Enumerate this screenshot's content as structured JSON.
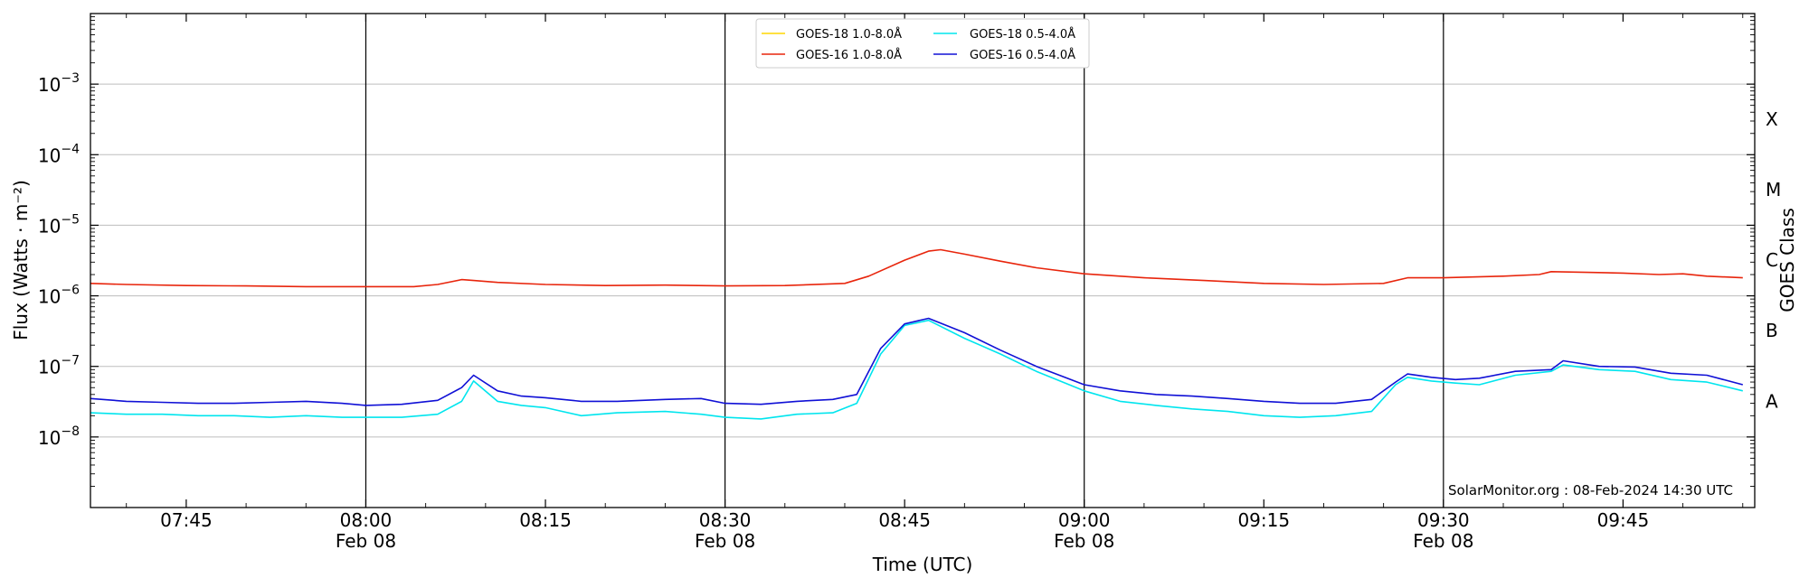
{
  "chart_data": {
    "type": "line",
    "title": "",
    "xlabel": "Time (UTC)",
    "ylabel": "Flux (Watts · m⁻²)",
    "right_label": "GOES Class",
    "y_scale": "log",
    "ylim": [
      1e-09,
      0.01
    ],
    "xlim": [
      "07:37",
      "09:56"
    ],
    "grid": "horizontal",
    "legend_position": "top-center",
    "watermark": "SolarMonitor.org : 08-Feb-2024 14:30 UTC",
    "x_ticks": [
      {
        "time": "07:45",
        "label": "07:45",
        "sub": ""
      },
      {
        "time": "08:00",
        "label": "08:00",
        "sub": "Feb 08"
      },
      {
        "time": "08:15",
        "label": "08:15",
        "sub": ""
      },
      {
        "time": "08:30",
        "label": "08:30",
        "sub": "Feb 08"
      },
      {
        "time": "08:45",
        "label": "08:45",
        "sub": ""
      },
      {
        "time": "09:00",
        "label": "09:00",
        "sub": "Feb 08"
      },
      {
        "time": "09:15",
        "label": "09:15",
        "sub": ""
      },
      {
        "time": "09:30",
        "label": "09:30",
        "sub": "Feb 08"
      },
      {
        "time": "09:45",
        "label": "09:45",
        "sub": ""
      }
    ],
    "day_lines": [
      "08:00",
      "08:30",
      "09:00",
      "09:30"
    ],
    "y_ticks": [
      {
        "value": 1e-08,
        "base": "10",
        "exp": "−8"
      },
      {
        "value": 1e-07,
        "base": "10",
        "exp": "−7"
      },
      {
        "value": 1e-06,
        "base": "10",
        "exp": "−6"
      },
      {
        "value": 1e-05,
        "base": "10",
        "exp": "−5"
      },
      {
        "value": 0.0001,
        "base": "10",
        "exp": "−4"
      },
      {
        "value": 0.001,
        "base": "10",
        "exp": "−3"
      }
    ],
    "goes_classes": [
      {
        "label": "A",
        "value": 3.2e-08
      },
      {
        "label": "B",
        "value": 3.2e-07
      },
      {
        "label": "C",
        "value": 3.2e-06
      },
      {
        "label": "M",
        "value": 3.2e-05
      },
      {
        "label": "X",
        "value": 0.00032
      }
    ],
    "series": [
      {
        "name": "GOES-18 1.0-8.0Å",
        "color": "#ffd700",
        "x": [],
        "values": []
      },
      {
        "name": "GOES-18 0.5-4.0Å",
        "color": "#00e5ee",
        "x": [
          "07:37",
          "07:40",
          "07:43",
          "07:46",
          "07:49",
          "07:52",
          "07:55",
          "07:58",
          "08:00",
          "08:03",
          "08:06",
          "08:08",
          "08:09",
          "08:11",
          "08:13",
          "08:15",
          "08:18",
          "08:21",
          "08:25",
          "08:28",
          "08:30",
          "08:33",
          "08:36",
          "08:39",
          "08:41",
          "08:43",
          "08:45",
          "08:47",
          "08:50",
          "08:53",
          "08:56",
          "09:00",
          "09:03",
          "09:06",
          "09:09",
          "09:12",
          "09:15",
          "09:18",
          "09:21",
          "09:24",
          "09:26",
          "09:27",
          "09:29",
          "09:31",
          "09:33",
          "09:36",
          "09:39",
          "09:40",
          "09:43",
          "09:46",
          "09:49",
          "09:52",
          "09:55"
        ],
        "values": [
          2.2e-08,
          2.1e-08,
          2.1e-08,
          2e-08,
          2e-08,
          1.9e-08,
          2e-08,
          1.9e-08,
          1.9e-08,
          1.9e-08,
          2.1e-08,
          3.2e-08,
          6.2e-08,
          3.2e-08,
          2.8e-08,
          2.6e-08,
          2e-08,
          2.2e-08,
          2.3e-08,
          2.1e-08,
          1.9e-08,
          1.8e-08,
          2.1e-08,
          2.2e-08,
          3e-08,
          1.5e-07,
          3.8e-07,
          4.5e-07,
          2.5e-07,
          1.5e-07,
          8.5e-08,
          4.5e-08,
          3.2e-08,
          2.8e-08,
          2.5e-08,
          2.3e-08,
          2e-08,
          1.9e-08,
          2e-08,
          2.3e-08,
          5.5e-08,
          7e-08,
          6.2e-08,
          5.8e-08,
          5.5e-08,
          7.5e-08,
          8.5e-08,
          1.05e-07,
          9e-08,
          8.5e-08,
          6.5e-08,
          6e-08,
          4.5e-08
        ]
      },
      {
        "name": "GOES-16 1.0-8.0Å",
        "color": "#e8250c",
        "x": [
          "07:37",
          "07:40",
          "07:45",
          "07:50",
          "07:55",
          "08:00",
          "08:04",
          "08:06",
          "08:08",
          "08:09",
          "08:11",
          "08:15",
          "08:20",
          "08:25",
          "08:30",
          "08:35",
          "08:40",
          "08:42",
          "08:45",
          "08:47",
          "08:48",
          "08:50",
          "08:53",
          "08:56",
          "09:00",
          "09:05",
          "09:10",
          "09:15",
          "09:20",
          "09:25",
          "09:27",
          "09:30",
          "09:35",
          "09:38",
          "09:39",
          "09:42",
          "09:45",
          "09:48",
          "09:50",
          "09:52",
          "09:55"
        ],
        "values": [
          1.5e-06,
          1.45e-06,
          1.4e-06,
          1.38e-06,
          1.35e-06,
          1.35e-06,
          1.35e-06,
          1.45e-06,
          1.7e-06,
          1.65e-06,
          1.55e-06,
          1.45e-06,
          1.4e-06,
          1.42e-06,
          1.38e-06,
          1.4e-06,
          1.5e-06,
          1.9e-06,
          3.2e-06,
          4.3e-06,
          4.5e-06,
          3.9e-06,
          3.1e-06,
          2.5e-06,
          2.05e-06,
          1.8e-06,
          1.65e-06,
          1.5e-06,
          1.45e-06,
          1.5e-06,
          1.8e-06,
          1.8e-06,
          1.9e-06,
          2e-06,
          2.2e-06,
          2.15e-06,
          2.1e-06,
          2e-06,
          2.05e-06,
          1.9e-06,
          1.8e-06
        ]
      },
      {
        "name": "GOES-16 0.5-4.0Å",
        "color": "#1010d6",
        "x": [
          "07:37",
          "07:40",
          "07:43",
          "07:46",
          "07:49",
          "07:52",
          "07:55",
          "07:58",
          "08:00",
          "08:03",
          "08:06",
          "08:08",
          "08:09",
          "08:11",
          "08:13",
          "08:15",
          "08:18",
          "08:21",
          "08:25",
          "08:28",
          "08:30",
          "08:33",
          "08:36",
          "08:39",
          "08:41",
          "08:43",
          "08:45",
          "08:47",
          "08:50",
          "08:53",
          "08:56",
          "09:00",
          "09:03",
          "09:06",
          "09:09",
          "09:12",
          "09:15",
          "09:18",
          "09:21",
          "09:24",
          "09:26",
          "09:27",
          "09:29",
          "09:31",
          "09:33",
          "09:36",
          "09:39",
          "09:40",
          "09:43",
          "09:46",
          "09:49",
          "09:52",
          "09:55"
        ],
        "values": [
          3.5e-08,
          3.2e-08,
          3.1e-08,
          3e-08,
          3e-08,
          3.1e-08,
          3.2e-08,
          3e-08,
          2.8e-08,
          2.9e-08,
          3.3e-08,
          5e-08,
          7.5e-08,
          4.5e-08,
          3.8e-08,
          3.6e-08,
          3.2e-08,
          3.2e-08,
          3.4e-08,
          3.5e-08,
          3e-08,
          2.9e-08,
          3.2e-08,
          3.4e-08,
          4e-08,
          1.8e-07,
          4e-07,
          4.8e-07,
          3e-07,
          1.7e-07,
          1e-07,
          5.5e-08,
          4.5e-08,
          4e-08,
          3.8e-08,
          3.5e-08,
          3.2e-08,
          3e-08,
          3e-08,
          3.4e-08,
          6e-08,
          7.8e-08,
          7e-08,
          6.5e-08,
          6.8e-08,
          8.5e-08,
          9e-08,
          1.2e-07,
          1e-07,
          9.8e-08,
          8e-08,
          7.5e-08,
          5.5e-08
        ]
      }
    ]
  }
}
